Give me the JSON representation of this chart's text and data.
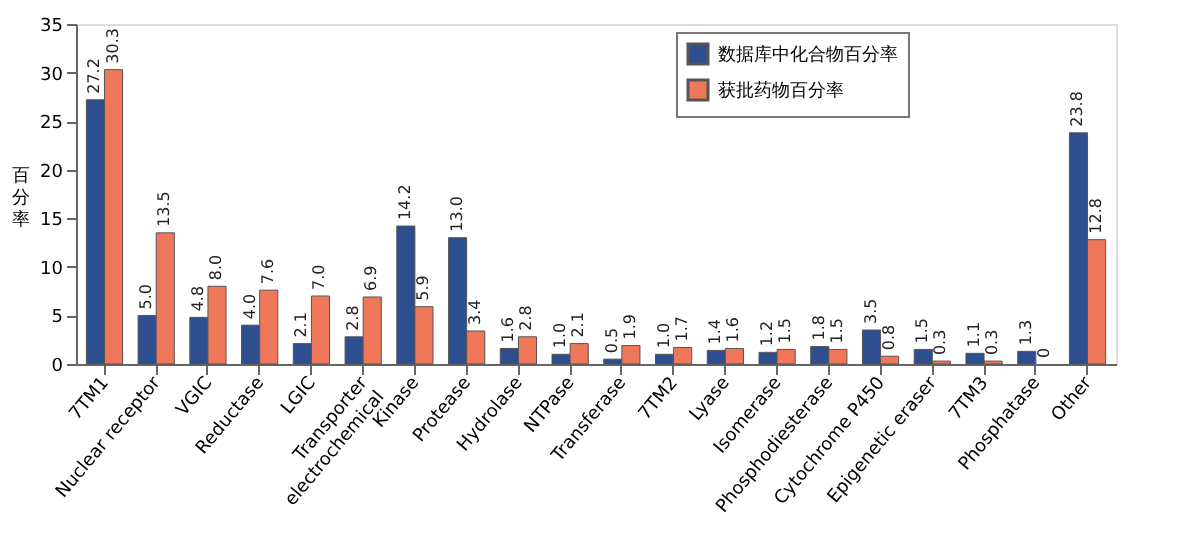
{
  "chart_data": {
    "type": "bar",
    "ylabel": "百分率",
    "categories": [
      "7TM1",
      "Nuclear receptor",
      "VGIC",
      "Reductase",
      "LGIC",
      "Transporter electrochemical",
      "Kinase",
      "Protease",
      "Hydrolase",
      "NTPase",
      "Transferase",
      "7TM2",
      "Lyase",
      "Isomerase",
      "Phosphodiesterase",
      "Cytochrome P450",
      "Epigenetic eraser",
      "7TM3",
      "Phosphatase",
      "Other"
    ],
    "series": [
      {
        "name": "数据库中化合物百分率",
        "color": "#2e4f8f",
        "values": [
          27.2,
          5.0,
          4.8,
          4.0,
          2.1,
          2.8,
          14.2,
          13.0,
          1.6,
          1.0,
          0.5,
          1.0,
          1.4,
          1.2,
          1.8,
          3.5,
          1.5,
          1.1,
          1.3,
          23.8
        ]
      },
      {
        "name": "获批药物百分率",
        "color": "#f0785a",
        "values": [
          30.3,
          13.5,
          8.0,
          7.6,
          7.0,
          6.9,
          5.9,
          3.4,
          2.8,
          2.1,
          1.9,
          1.7,
          1.6,
          1.5,
          1.5,
          0.8,
          0.3,
          0.3,
          0,
          12.8
        ]
      }
    ],
    "value_labels": [
      [
        "27.2",
        "5.0",
        "4.8",
        "4.0",
        "2.1",
        "2.8",
        "14.2",
        "13.0",
        "1.6",
        "1.0",
        "0.5",
        "1.0",
        "1.4",
        "1.2",
        "1.8",
        "3.5",
        "1.5",
        "1.1",
        "1.3",
        "23.8"
      ],
      [
        "30.3",
        "13.5",
        "8.0",
        "7.6",
        "7.0",
        "6.9",
        "5.9",
        "3.4",
        "2.8",
        "2.1",
        "1.9",
        "1.7",
        "1.6",
        "1.5",
        "1.5",
        "0.8",
        "0.3",
        "0.3",
        "0",
        "12.8"
      ]
    ],
    "ylim": [
      0,
      35
    ],
    "yticks": [
      0,
      5,
      10,
      15,
      20,
      25,
      30,
      35
    ],
    "grid": false,
    "legend": "top right"
  }
}
